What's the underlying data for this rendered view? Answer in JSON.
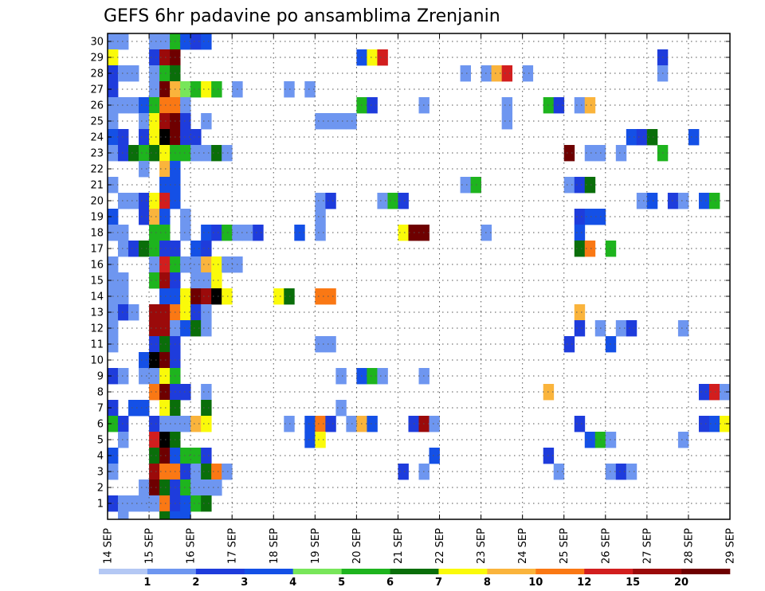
{
  "chart_data": {
    "type": "heatmap",
    "title": "GEFS 6hr padavine po ansamblima Zrenjanin",
    "xlabel": "",
    "ylabel": "",
    "x_ticks": [
      "14 SEP",
      "15 SEP",
      "16 SEP",
      "17 SEP",
      "18 SEP",
      "19 SEP",
      "20 SEP",
      "21 SEP",
      "22 SEP",
      "23 SEP",
      "24 SEP",
      "25 SEP",
      "26 SEP",
      "27 SEP",
      "28 SEP",
      "29 SEP"
    ],
    "y_ticks": [
      "1",
      "2",
      "3",
      "4",
      "5",
      "6",
      "7",
      "8",
      "9",
      "10",
      "11",
      "12",
      "13",
      "14",
      "15",
      "16",
      "17",
      "18",
      "19",
      "20",
      "21",
      "22",
      "23",
      "24",
      "25",
      "26",
      "27",
      "28",
      "29",
      "30"
    ],
    "xlim": [
      0,
      60
    ],
    "ylim": [
      0.5,
      30.5
    ],
    "grid": true,
    "levels": [
      "1",
      "2",
      "3",
      "4",
      "5",
      "6",
      "7",
      "8",
      "10",
      "12",
      "15",
      "20"
    ],
    "colors": [
      "#b4c8f4",
      "#6e96f0",
      "#1e3cdc",
      "#1450e6",
      "#78e65a",
      "#1eb41e",
      "#0a6e0a",
      "#fafa0a",
      "#fab43c",
      "#fa7814",
      "#d21e1e",
      "#9b0a0a",
      "#6e0000"
    ],
    "cells": [
      [
        0,
        30,
        1
      ],
      [
        1,
        30,
        1
      ],
      [
        4,
        30,
        1
      ],
      [
        5,
        30,
        1
      ],
      [
        6,
        30,
        5
      ],
      [
        7,
        30,
        3
      ],
      [
        8,
        30,
        2
      ],
      [
        9,
        30,
        3
      ],
      [
        0,
        29,
        7
      ],
      [
        4,
        29,
        2
      ],
      [
        5,
        29,
        11
      ],
      [
        6,
        29,
        12
      ],
      [
        24,
        29,
        3
      ],
      [
        25,
        29,
        7
      ],
      [
        26,
        29,
        10
      ],
      [
        53,
        29,
        2
      ],
      [
        0,
        28,
        2
      ],
      [
        1,
        28,
        1
      ],
      [
        2,
        28,
        1
      ],
      [
        4,
        28,
        1
      ],
      [
        5,
        28,
        5
      ],
      [
        6,
        28,
        6
      ],
      [
        34,
        28,
        1
      ],
      [
        36,
        28,
        1
      ],
      [
        37,
        28,
        8
      ],
      [
        38,
        28,
        10
      ],
      [
        40,
        28,
        1
      ],
      [
        53,
        28,
        1
      ],
      [
        0,
        27,
        2
      ],
      [
        4,
        27,
        1
      ],
      [
        5,
        27,
        12
      ],
      [
        6,
        27,
        8
      ],
      [
        7,
        27,
        4
      ],
      [
        8,
        27,
        5
      ],
      [
        9,
        27,
        7
      ],
      [
        10,
        27,
        5
      ],
      [
        12,
        27,
        1
      ],
      [
        17,
        27,
        1
      ],
      [
        19,
        27,
        1
      ],
      [
        0,
        26,
        1
      ],
      [
        1,
        26,
        1
      ],
      [
        2,
        26,
        1
      ],
      [
        3,
        26,
        3
      ],
      [
        4,
        26,
        5
      ],
      [
        5,
        26,
        9
      ],
      [
        6,
        26,
        9
      ],
      [
        7,
        26,
        1
      ],
      [
        24,
        26,
        5
      ],
      [
        25,
        26,
        2
      ],
      [
        30,
        26,
        1
      ],
      [
        38,
        26,
        1
      ],
      [
        42,
        26,
        5
      ],
      [
        43,
        26,
        2
      ],
      [
        45,
        26,
        1
      ],
      [
        46,
        26,
        8
      ],
      [
        0,
        25,
        1
      ],
      [
        3,
        25,
        1
      ],
      [
        4,
        25,
        7
      ],
      [
        5,
        25,
        11
      ],
      [
        6,
        25,
        12
      ],
      [
        7,
        25,
        2
      ],
      [
        9,
        25,
        1
      ],
      [
        20,
        25,
        1
      ],
      [
        21,
        25,
        1
      ],
      [
        22,
        25,
        1
      ],
      [
        23,
        25,
        1
      ],
      [
        38,
        25,
        1
      ],
      [
        0,
        24,
        3
      ],
      [
        1,
        24,
        2
      ],
      [
        3,
        24,
        2
      ],
      [
        4,
        24,
        7
      ],
      [
        5,
        24,
        13
      ],
      [
        6,
        24,
        12
      ],
      [
        7,
        24,
        2
      ],
      [
        8,
        24,
        2
      ],
      [
        50,
        24,
        3
      ],
      [
        51,
        24,
        2
      ],
      [
        52,
        24,
        6
      ],
      [
        56,
        24,
        3
      ],
      [
        0,
        23,
        1
      ],
      [
        1,
        23,
        2
      ],
      [
        2,
        23,
        6
      ],
      [
        3,
        23,
        5
      ],
      [
        4,
        23,
        6
      ],
      [
        5,
        23,
        7
      ],
      [
        6,
        23,
        5
      ],
      [
        7,
        23,
        5
      ],
      [
        8,
        23,
        1
      ],
      [
        9,
        23,
        1
      ],
      [
        10,
        23,
        6
      ],
      [
        11,
        23,
        1
      ],
      [
        44,
        23,
        12
      ],
      [
        46,
        23,
        1
      ],
      [
        47,
        23,
        1
      ],
      [
        49,
        23,
        1
      ],
      [
        53,
        23,
        5
      ],
      [
        3,
        22,
        1
      ],
      [
        5,
        22,
        8
      ],
      [
        6,
        22,
        3
      ],
      [
        0,
        21,
        1
      ],
      [
        5,
        21,
        3
      ],
      [
        6,
        21,
        3
      ],
      [
        34,
        21,
        1
      ],
      [
        35,
        21,
        5
      ],
      [
        44,
        21,
        1
      ],
      [
        45,
        21,
        2
      ],
      [
        46,
        21,
        6
      ],
      [
        1,
        20,
        1
      ],
      [
        2,
        20,
        1
      ],
      [
        3,
        20,
        2
      ],
      [
        4,
        20,
        7
      ],
      [
        5,
        20,
        10
      ],
      [
        6,
        20,
        3
      ],
      [
        20,
        20,
        1
      ],
      [
        21,
        20,
        2
      ],
      [
        26,
        20,
        1
      ],
      [
        27,
        20,
        5
      ],
      [
        28,
        20,
        2
      ],
      [
        51,
        20,
        1
      ],
      [
        52,
        20,
        3
      ],
      [
        54,
        20,
        2
      ],
      [
        55,
        20,
        1
      ],
      [
        57,
        20,
        3
      ],
      [
        58,
        20,
        5
      ],
      [
        0,
        19,
        3
      ],
      [
        3,
        19,
        2
      ],
      [
        4,
        19,
        8
      ],
      [
        5,
        19,
        3
      ],
      [
        7,
        19,
        1
      ],
      [
        20,
        19,
        1
      ],
      [
        45,
        19,
        2
      ],
      [
        46,
        19,
        3
      ],
      [
        47,
        19,
        3
      ],
      [
        0,
        18,
        1
      ],
      [
        1,
        18,
        1
      ],
      [
        4,
        18,
        5
      ],
      [
        5,
        18,
        5
      ],
      [
        7,
        18,
        1
      ],
      [
        9,
        18,
        3
      ],
      [
        10,
        18,
        2
      ],
      [
        11,
        18,
        5
      ],
      [
        12,
        18,
        1
      ],
      [
        13,
        18,
        1
      ],
      [
        14,
        18,
        2
      ],
      [
        18,
        18,
        3
      ],
      [
        20,
        18,
        1
      ],
      [
        28,
        18,
        7
      ],
      [
        29,
        18,
        12
      ],
      [
        30,
        18,
        12
      ],
      [
        36,
        18,
        1
      ],
      [
        45,
        18,
        3
      ],
      [
        1,
        17,
        1
      ],
      [
        2,
        17,
        2
      ],
      [
        3,
        17,
        6
      ],
      [
        4,
        17,
        5
      ],
      [
        5,
        17,
        2
      ],
      [
        6,
        17,
        2
      ],
      [
        8,
        17,
        3
      ],
      [
        9,
        17,
        2
      ],
      [
        45,
        17,
        6
      ],
      [
        46,
        17,
        9
      ],
      [
        48,
        17,
        5
      ],
      [
        0,
        16,
        1
      ],
      [
        4,
        16,
        1
      ],
      [
        5,
        16,
        10
      ],
      [
        6,
        16,
        5
      ],
      [
        7,
        16,
        1
      ],
      [
        8,
        16,
        1
      ],
      [
        9,
        16,
        8
      ],
      [
        10,
        16,
        7
      ],
      [
        11,
        16,
        1
      ],
      [
        12,
        16,
        1
      ],
      [
        0,
        15,
        1
      ],
      [
        1,
        15,
        1
      ],
      [
        4,
        15,
        5
      ],
      [
        5,
        15,
        11
      ],
      [
        6,
        15,
        2
      ],
      [
        8,
        15,
        1
      ],
      [
        9,
        15,
        1
      ],
      [
        10,
        15,
        7
      ],
      [
        0,
        14,
        1
      ],
      [
        1,
        14,
        1
      ],
      [
        5,
        14,
        3
      ],
      [
        6,
        14,
        3
      ],
      [
        7,
        14,
        7
      ],
      [
        8,
        14,
        12
      ],
      [
        9,
        14,
        11
      ],
      [
        10,
        14,
        13
      ],
      [
        11,
        14,
        7
      ],
      [
        16,
        14,
        7
      ],
      [
        17,
        14,
        6
      ],
      [
        20,
        14,
        9
      ],
      [
        21,
        14,
        9
      ],
      [
        0,
        13,
        1
      ],
      [
        1,
        13,
        2
      ],
      [
        2,
        13,
        1
      ],
      [
        4,
        13,
        11
      ],
      [
        5,
        13,
        11
      ],
      [
        6,
        13,
        9
      ],
      [
        7,
        13,
        7
      ],
      [
        8,
        13,
        2
      ],
      [
        9,
        13,
        1
      ],
      [
        45,
        13,
        8
      ],
      [
        0,
        12,
        1
      ],
      [
        4,
        12,
        11
      ],
      [
        5,
        12,
        11
      ],
      [
        6,
        12,
        1
      ],
      [
        7,
        12,
        3
      ],
      [
        8,
        12,
        6
      ],
      [
        9,
        12,
        1
      ],
      [
        45,
        12,
        2
      ],
      [
        47,
        12,
        1
      ],
      [
        49,
        12,
        1
      ],
      [
        50,
        12,
        2
      ],
      [
        55,
        12,
        1
      ],
      [
        0,
        11,
        1
      ],
      [
        4,
        11,
        2
      ],
      [
        5,
        11,
        6
      ],
      [
        6,
        11,
        2
      ],
      [
        20,
        11,
        1
      ],
      [
        21,
        11,
        1
      ],
      [
        44,
        11,
        2
      ],
      [
        48,
        11,
        3
      ],
      [
        3,
        10,
        3
      ],
      [
        4,
        10,
        13
      ],
      [
        5,
        10,
        12
      ],
      [
        6,
        10,
        2
      ],
      [
        0,
        9,
        2
      ],
      [
        1,
        9,
        1
      ],
      [
        3,
        9,
        1
      ],
      [
        4,
        9,
        1
      ],
      [
        5,
        9,
        7
      ],
      [
        6,
        9,
        5
      ],
      [
        22,
        9,
        1
      ],
      [
        24,
        9,
        3
      ],
      [
        25,
        9,
        5
      ],
      [
        26,
        9,
        1
      ],
      [
        30,
        9,
        1
      ],
      [
        4,
        8,
        9
      ],
      [
        5,
        8,
        12
      ],
      [
        6,
        8,
        2
      ],
      [
        7,
        8,
        2
      ],
      [
        9,
        8,
        1
      ],
      [
        42,
        8,
        8
      ],
      [
        57,
        8,
        2
      ],
      [
        58,
        8,
        10
      ],
      [
        59,
        8,
        1
      ],
      [
        0,
        7,
        2
      ],
      [
        2,
        7,
        3
      ],
      [
        3,
        7,
        3
      ],
      [
        5,
        7,
        7
      ],
      [
        6,
        7,
        6
      ],
      [
        9,
        7,
        6
      ],
      [
        22,
        7,
        1
      ],
      [
        0,
        6,
        5
      ],
      [
        1,
        6,
        2
      ],
      [
        4,
        6,
        2
      ],
      [
        5,
        6,
        1
      ],
      [
        6,
        6,
        1
      ],
      [
        7,
        6,
        1
      ],
      [
        8,
        6,
        8
      ],
      [
        9,
        6,
        7
      ],
      [
        17,
        6,
        1
      ],
      [
        19,
        6,
        3
      ],
      [
        20,
        6,
        9
      ],
      [
        21,
        6,
        2
      ],
      [
        23,
        6,
        1
      ],
      [
        24,
        6,
        8
      ],
      [
        25,
        6,
        3
      ],
      [
        29,
        6,
        2
      ],
      [
        30,
        6,
        11
      ],
      [
        31,
        6,
        1
      ],
      [
        45,
        6,
        2
      ],
      [
        57,
        6,
        2
      ],
      [
        58,
        6,
        3
      ],
      [
        59,
        6,
        7
      ],
      [
        1,
        5,
        1
      ],
      [
        4,
        5,
        10
      ],
      [
        5,
        5,
        13
      ],
      [
        6,
        5,
        6
      ],
      [
        19,
        5,
        3
      ],
      [
        20,
        5,
        7
      ],
      [
        46,
        5,
        3
      ],
      [
        47,
        5,
        5
      ],
      [
        48,
        5,
        1
      ],
      [
        55,
        5,
        1
      ],
      [
        0,
        4,
        3
      ],
      [
        4,
        4,
        6
      ],
      [
        5,
        4,
        12
      ],
      [
        6,
        4,
        3
      ],
      [
        7,
        4,
        5
      ],
      [
        8,
        4,
        5
      ],
      [
        9,
        4,
        2
      ],
      [
        31,
        4,
        3
      ],
      [
        42,
        4,
        2
      ],
      [
        0,
        3,
        1
      ],
      [
        4,
        3,
        11
      ],
      [
        5,
        3,
        9
      ],
      [
        6,
        3,
        9
      ],
      [
        7,
        3,
        2
      ],
      [
        8,
        3,
        1
      ],
      [
        9,
        3,
        6
      ],
      [
        10,
        3,
        9
      ],
      [
        11,
        3,
        1
      ],
      [
        28,
        3,
        2
      ],
      [
        30,
        3,
        1
      ],
      [
        43,
        3,
        1
      ],
      [
        48,
        3,
        1
      ],
      [
        49,
        3,
        2
      ],
      [
        50,
        3,
        1
      ],
      [
        3,
        2,
        1
      ],
      [
        4,
        2,
        12
      ],
      [
        5,
        2,
        6
      ],
      [
        6,
        2,
        2
      ],
      [
        7,
        2,
        5
      ],
      [
        8,
        2,
        1
      ],
      [
        9,
        2,
        1
      ],
      [
        10,
        2,
        1
      ],
      [
        0,
        1,
        2
      ],
      [
        1,
        1,
        1
      ],
      [
        2,
        1,
        1
      ],
      [
        3,
        1,
        1
      ],
      [
        4,
        1,
        1
      ],
      [
        5,
        1,
        9
      ],
      [
        6,
        1,
        2
      ],
      [
        7,
        1,
        3
      ],
      [
        8,
        1,
        5
      ],
      [
        9,
        1,
        6
      ],
      [
        1,
        0.5,
        1
      ],
      [
        5,
        0.5,
        6
      ],
      [
        6,
        0.5,
        3
      ],
      [
        7,
        0.5,
        3
      ]
    ]
  }
}
